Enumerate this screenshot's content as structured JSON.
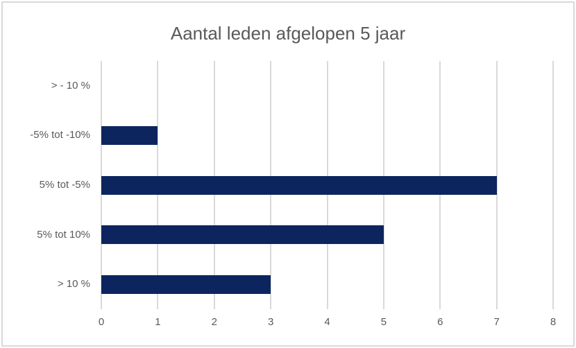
{
  "window": {
    "background_color": "#ffffff",
    "frame_border_color": "#d9d9d9"
  },
  "chart_data": {
    "type": "bar",
    "orientation": "horizontal",
    "title": "Aantal leden afgelopen 5 jaar",
    "categories": [
      "> - 10 %",
      "-5% tot -10%",
      "5% tot -5%",
      "5% tot 10%",
      "> 10 %"
    ],
    "values": [
      0,
      1,
      7,
      5,
      3
    ],
    "xlabel": "",
    "ylabel": "",
    "xlim": [
      0,
      8
    ],
    "x_ticks": [
      0,
      1,
      2,
      3,
      4,
      5,
      6,
      7,
      8
    ],
    "grid": true,
    "legend": "none",
    "bar_color": "#0d255f",
    "gridline_color": "#d9d9d9",
    "text_color": "#595959"
  }
}
